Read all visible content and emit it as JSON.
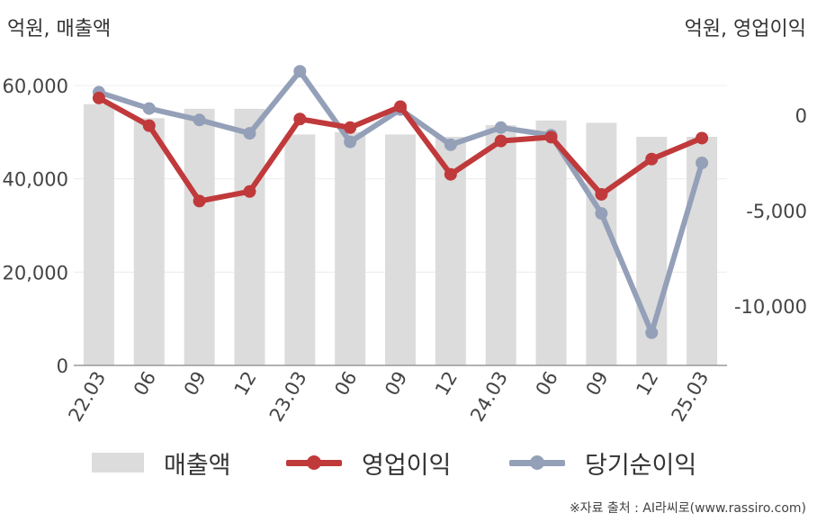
{
  "chart_data": {
    "type": "bar+line",
    "left_axis_unit": "억원, 매출액",
    "right_axis_unit": "억원, 영업이익",
    "categories": [
      "22.03",
      "06",
      "09",
      "12",
      "23.03",
      "06",
      "09",
      "12",
      "24.03",
      "06",
      "09",
      "12",
      "25.03"
    ],
    "left_axis": {
      "ylim": [
        0,
        60000
      ],
      "ticks": [
        "0",
        "20,000",
        "40,000",
        "60,000"
      ]
    },
    "right_axis": {
      "ylim": [
        -13000,
        2500
      ],
      "ticks": [
        "0",
        "-5,000",
        "-10,000"
      ]
    },
    "series": [
      {
        "name": "매출액",
        "type": "bar",
        "axis": "left",
        "values": [
          56000,
          53000,
          55000,
          55000,
          49500,
          50000,
          49500,
          49000,
          51500,
          52500,
          52000,
          49000,
          49000
        ]
      },
      {
        "name": "영업이익",
        "type": "line",
        "axis": "right",
        "values": [
          900,
          -550,
          -4500,
          -4000,
          -200,
          -650,
          450,
          -3100,
          -1350,
          -1150,
          -4150,
          -2300,
          -1200
        ]
      },
      {
        "name": "당기순이익",
        "type": "line",
        "axis": "right",
        "values": [
          1200,
          350,
          -250,
          -950,
          2300,
          -1400,
          300,
          -1550,
          -650,
          -1050,
          -5150,
          -11400,
          -2500
        ]
      }
    ],
    "colors": {
      "bar": "#dcdcdc",
      "op": "#c0393b",
      "net": "#94a0b8",
      "grid": "#ececec",
      "axis": "#999999"
    }
  },
  "legend": [
    {
      "label": "매출액"
    },
    {
      "label": "영업이익"
    },
    {
      "label": "당기순이익"
    }
  ],
  "source": "※자료 출처 : AI라씨로(www.rassiro.com)"
}
